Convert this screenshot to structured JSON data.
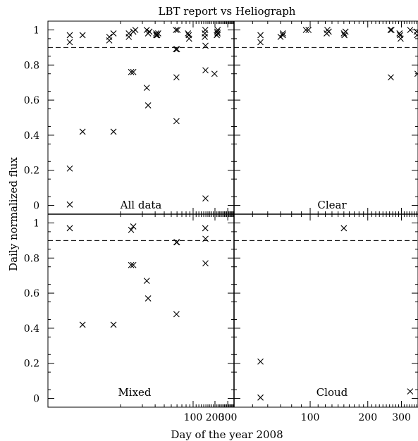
{
  "chart_data": {
    "type": "scatter",
    "title": "LBT report vs Heliograph",
    "xlabel": "Day of the year 2008",
    "ylabel": "Daily normalized flux",
    "threshold": 0.9,
    "colors": {
      "marker": "#000000",
      "frame": "#000000"
    },
    "panels": [
      {
        "label": "All data",
        "xlim": [
          1,
          366
        ],
        "ylim": [
          -0.05,
          1.05
        ],
        "x_scale": "log",
        "x_ticks": [
          100,
          200,
          300
        ],
        "x_tick_labels": [],
        "y_ticks": [
          0,
          0.2,
          0.4,
          0.6,
          0.8,
          1
        ],
        "y_tick_labels": [
          "0",
          "0.2",
          "0.4",
          "0.6",
          "0.8",
          "1"
        ],
        "points": [
          [
            2,
            0.97
          ],
          [
            2,
            0.93
          ],
          [
            2,
            0.21
          ],
          [
            2,
            0.005
          ],
          [
            3,
            0.97
          ],
          [
            3,
            0.42
          ],
          [
            7,
            0.96
          ],
          [
            7,
            0.94
          ],
          [
            8,
            0.98
          ],
          [
            8,
            0.42
          ],
          [
            13,
            0.98
          ],
          [
            13,
            0.96
          ],
          [
            14,
            0.76
          ],
          [
            15,
            0.76
          ],
          [
            15,
            0.99
          ],
          [
            16,
            1.0
          ],
          [
            23,
            0.67
          ],
          [
            24,
            0.57
          ],
          [
            23,
            1.0
          ],
          [
            24,
            0.98
          ],
          [
            25,
            0.99
          ],
          [
            31,
            0.98
          ],
          [
            31,
            0.97
          ],
          [
            32,
            0.97
          ],
          [
            33,
            0.98
          ],
          [
            58,
            1.0
          ],
          [
            61,
            1.0
          ],
          [
            58,
            0.89
          ],
          [
            60,
            0.89
          ],
          [
            59,
            0.73
          ],
          [
            59,
            0.48
          ],
          [
            85,
            0.98
          ],
          [
            87,
            0.97
          ],
          [
            88,
            0.95
          ],
          [
            145,
            0.98
          ],
          [
            145,
            0.96
          ],
          [
            148,
            0.77
          ],
          [
            148,
            0.91
          ],
          [
            148,
            0.04
          ],
          [
            147,
            1.0
          ],
          [
            197,
            0.75
          ],
          [
            212,
            0.97
          ],
          [
            215,
            0.99
          ],
          [
            217,
            0.98
          ],
          [
            218,
            1.0
          ]
        ]
      },
      {
        "label": "Clear",
        "xlim": [
          40,
          366
        ],
        "ylim": [
          -0.05,
          1.05
        ],
        "x_scale": "log",
        "x_ticks": [
          100,
          200,
          300
        ],
        "x_tick_labels": [],
        "y_ticks": [
          0,
          0.2,
          0.4,
          0.6,
          0.8,
          1
        ],
        "y_tick_labels": [],
        "points": [
          [
            55,
            0.97
          ],
          [
            55,
            0.93
          ],
          [
            70,
            0.96
          ],
          [
            72,
            0.98
          ],
          [
            72,
            0.97
          ],
          [
            95,
            1.0
          ],
          [
            98,
            1.0
          ],
          [
            122,
            0.98
          ],
          [
            123,
            1.0
          ],
          [
            125,
            0.99
          ],
          [
            150,
            0.98
          ],
          [
            151,
            0.97
          ],
          [
            153,
            0.99
          ],
          [
            263,
            1.0
          ],
          [
            266,
            1.0
          ],
          [
            264,
            0.73
          ],
          [
            293,
            0.98
          ],
          [
            295,
            0.97
          ],
          [
            297,
            0.95
          ],
          [
            333,
            1.0
          ],
          [
            360,
            0.99
          ],
          [
            362,
            0.97
          ],
          [
            364,
            0.75
          ]
        ]
      },
      {
        "label": "Mixed",
        "xlim": [
          1,
          366
        ],
        "ylim": [
          -0.05,
          1.05
        ],
        "x_scale": "log",
        "x_ticks": [
          100,
          200,
          300
        ],
        "x_tick_labels": [
          "100",
          "200",
          "300"
        ],
        "y_ticks": [
          0,
          0.2,
          0.4,
          0.6,
          0.8,
          1
        ],
        "y_tick_labels": [
          "0",
          "0.2",
          "0.4",
          "0.6",
          "0.8",
          "1"
        ],
        "points": [
          [
            2,
            0.97
          ],
          [
            3,
            0.42
          ],
          [
            8,
            0.42
          ],
          [
            14,
            0.96
          ],
          [
            15,
            0.98
          ],
          [
            14,
            0.76
          ],
          [
            15,
            0.76
          ],
          [
            23,
            0.67
          ],
          [
            24,
            0.57
          ],
          [
            59,
            0.89
          ],
          [
            60,
            0.89
          ],
          [
            59,
            0.48
          ],
          [
            147,
            0.97
          ],
          [
            148,
            0.91
          ],
          [
            148,
            0.77
          ]
        ]
      },
      {
        "label": "Cloud",
        "xlim": [
          40,
          366
        ],
        "ylim": [
          -0.05,
          1.05
        ],
        "x_scale": "log",
        "x_ticks": [
          100,
          200,
          300
        ],
        "x_tick_labels": [
          "100",
          "200",
          "300"
        ],
        "y_ticks": [
          0,
          0.2,
          0.4,
          0.6,
          0.8,
          1
        ],
        "y_tick_labels": [],
        "points": [
          [
            55,
            0.21
          ],
          [
            55,
            0.005
          ],
          [
            150,
            0.97
          ],
          [
            333,
            0.04
          ]
        ]
      }
    ]
  }
}
